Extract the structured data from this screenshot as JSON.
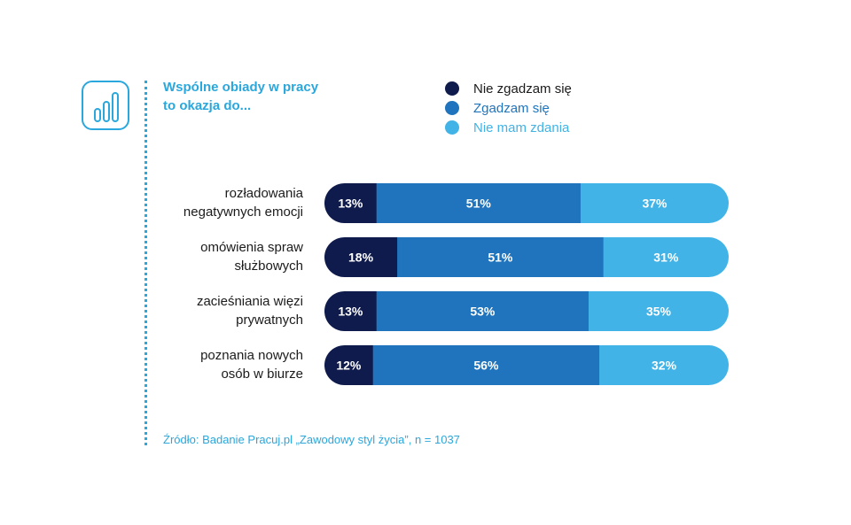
{
  "title": {
    "line1": "Wspólne obiady w pracy",
    "line2": "to okazja do..."
  },
  "icon": "bar-chart-icon",
  "colors": {
    "accent": "#2aa7dc",
    "disagree": "#0f1b4c",
    "agree": "#1f74bd",
    "no_opinion": "#41b3e6"
  },
  "legend": [
    {
      "label": "Nie zgadzam się",
      "color": "#0f1b4c",
      "text_color": "#1b1b1b"
    },
    {
      "label": "Zgadzam się",
      "color": "#1f74bd",
      "text_color": "#1f74bd"
    },
    {
      "label": "Nie mam zdania",
      "color": "#41b3e6",
      "text_color": "#41b3e6"
    }
  ],
  "categories": [
    {
      "line1": "rozładowania",
      "line2": "negatywnych emocji"
    },
    {
      "line1": "omówienia spraw",
      "line2": "służbowych"
    },
    {
      "line1": "zacieśniania więzi",
      "line2": "prywatnych"
    },
    {
      "line1": "poznania nowych",
      "line2": "osób w biurze"
    }
  ],
  "chart_data": {
    "type": "bar",
    "orientation": "horizontal",
    "stacked": true,
    "categories": [
      "rozładowania negatywnych emocji",
      "omówienia spraw służbowych",
      "zacieśniania więzi prywatnych",
      "poznania nowych osób w biurze"
    ],
    "series": [
      {
        "name": "Nie zgadzam się",
        "values": [
          13,
          18,
          13,
          12
        ],
        "labels": [
          "13%",
          "18%",
          "13%",
          "12%"
        ]
      },
      {
        "name": "Zgadzam się",
        "values": [
          51,
          51,
          53,
          56
        ],
        "labels": [
          "51%",
          "51%",
          "53%",
          "56%"
        ]
      },
      {
        "name": "Nie mam zdania",
        "values": [
          37,
          31,
          35,
          32
        ],
        "labels": [
          "37%",
          "31%",
          "35%",
          "32%"
        ]
      }
    ],
    "title": "Wspólne obiady w pracy to okazja do...",
    "legend_position": "top-right"
  },
  "source": "Źródło: Badanie Pracuj.pl „Zawodowy styl życia”, n = 1037"
}
